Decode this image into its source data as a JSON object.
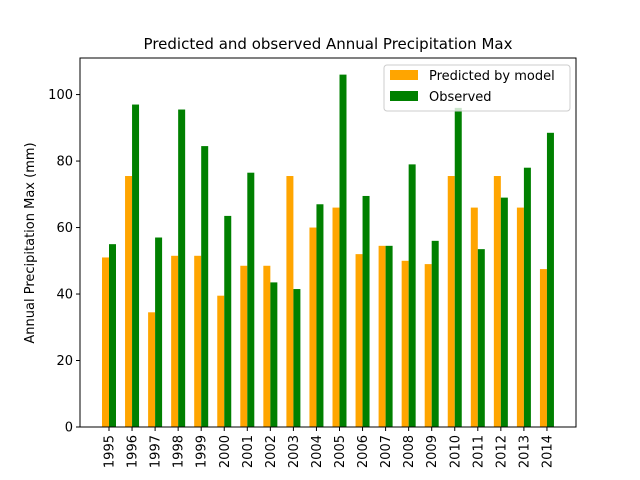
{
  "chart_data": {
    "type": "bar",
    "title": "Predicted and observed Annual Precipitation Max",
    "xlabel": "",
    "ylabel": "Annual Precipitation Max (mm)",
    "ylim": [
      0,
      111
    ],
    "yticks": [
      0,
      20,
      40,
      60,
      80,
      100
    ],
    "grid": false,
    "legend_position": "upper right",
    "categories": [
      "1995",
      "1996",
      "1997",
      "1998",
      "1999",
      "2000",
      "2001",
      "2002",
      "2003",
      "2004",
      "2005",
      "2006",
      "2007",
      "2008",
      "2009",
      "2010",
      "2011",
      "2012",
      "2013",
      "2014"
    ],
    "series": [
      {
        "name": "Predicted by model",
        "color": "#ffa500",
        "values": [
          51,
          75.5,
          34.5,
          51.5,
          51.5,
          39.5,
          48.5,
          48.5,
          75.5,
          60,
          66,
          52,
          54.5,
          50,
          49,
          75.5,
          66,
          75.5,
          66,
          47.5
        ]
      },
      {
        "name": "Observed",
        "color": "#008000",
        "values": [
          55,
          97,
          57,
          95.5,
          84.5,
          63.5,
          76.5,
          43.5,
          41.5,
          67,
          106,
          69.5,
          54.5,
          79,
          56,
          96,
          53.5,
          69,
          78,
          88.5
        ]
      }
    ]
  }
}
